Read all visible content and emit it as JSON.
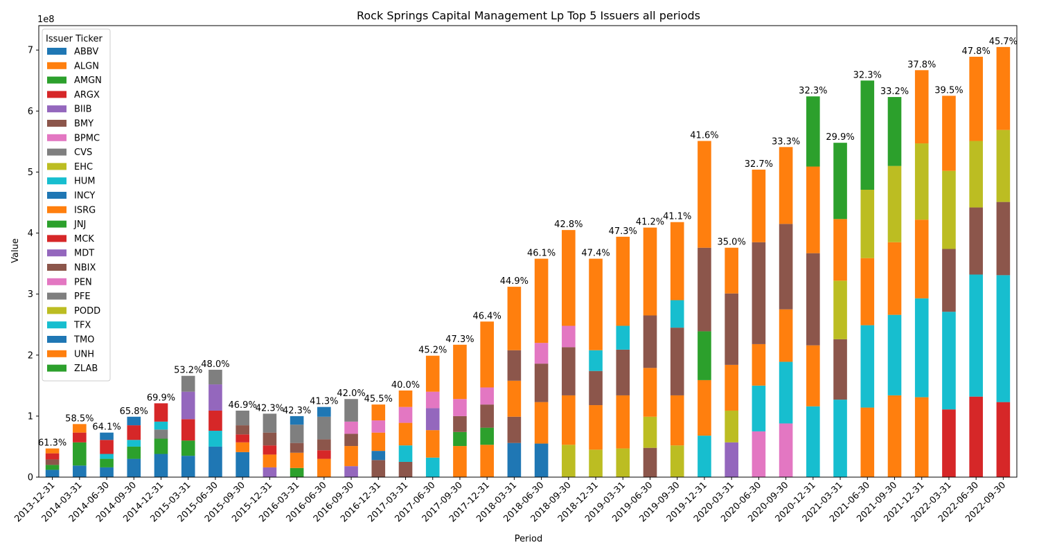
{
  "chart_data": {
    "type": "bar",
    "stacked": true,
    "title": "Rock Springs Capital Management Lp Top 5 Issuers all periods",
    "xlabel": "Period",
    "ylabel": "Value",
    "y_multiplier": "1e8",
    "ylim": [
      0,
      7.4
    ],
    "yticks": [
      0,
      1,
      2,
      3,
      4,
      5,
      6,
      7
    ],
    "legend_title": "Issuer Ticker",
    "legend_position": "top-left",
    "legend": [
      {
        "name": "ABBV",
        "color": "#1f77b4"
      },
      {
        "name": "ALGN",
        "color": "#ff7f0e"
      },
      {
        "name": "AMGN",
        "color": "#2ca02c"
      },
      {
        "name": "ARGX",
        "color": "#d62728"
      },
      {
        "name": "BIIB",
        "color": "#9467bd"
      },
      {
        "name": "BMY",
        "color": "#8c564b"
      },
      {
        "name": "BPMC",
        "color": "#e377c2"
      },
      {
        "name": "CVS",
        "color": "#7f7f7f"
      },
      {
        "name": "EHC",
        "color": "#bcbd22"
      },
      {
        "name": "HUM",
        "color": "#17becf"
      },
      {
        "name": "INCY",
        "color": "#1f77b4"
      },
      {
        "name": "ISRG",
        "color": "#ff7f0e"
      },
      {
        "name": "JNJ",
        "color": "#2ca02c"
      },
      {
        "name": "MCK",
        "color": "#d62728"
      },
      {
        "name": "MDT",
        "color": "#9467bd"
      },
      {
        "name": "NBIX",
        "color": "#8c564b"
      },
      {
        "name": "PEN",
        "color": "#e377c2"
      },
      {
        "name": "PFE",
        "color": "#7f7f7f"
      },
      {
        "name": "PODD",
        "color": "#bcbd22"
      },
      {
        "name": "TFX",
        "color": "#17becf"
      },
      {
        "name": "TMO",
        "color": "#1f77b4"
      },
      {
        "name": "UNH",
        "color": "#ff7f0e"
      },
      {
        "name": "ZLAB",
        "color": "#2ca02c"
      }
    ],
    "periods": [
      {
        "period": "2013-12-31",
        "label": "61.3%",
        "stack": [
          {
            "t": "ABBV",
            "v": 0.12
          },
          {
            "t": "AMGN",
            "v": 0.08
          },
          {
            "t": "BMY",
            "v": 0.09
          },
          {
            "t": "MCK",
            "v": 0.1
          },
          {
            "t": "UNH",
            "v": 0.08
          }
        ]
      },
      {
        "period": "2014-03-31",
        "label": "58.5%",
        "stack": [
          {
            "t": "ABBV",
            "v": 0.19
          },
          {
            "t": "JNJ",
            "v": 0.38
          },
          {
            "t": "MCK",
            "v": 0.16
          },
          {
            "t": "UNH",
            "v": 0.14
          }
        ]
      },
      {
        "period": "2014-06-30",
        "label": "64.1%",
        "stack": [
          {
            "t": "ABBV",
            "v": 0.16
          },
          {
            "t": "AMGN",
            "v": 0.14
          },
          {
            "t": "HUM",
            "v": 0.08
          },
          {
            "t": "MCK",
            "v": 0.23
          },
          {
            "t": "TMO",
            "v": 0.12
          }
        ]
      },
      {
        "period": "2014-09-30",
        "label": "65.8%",
        "stack": [
          {
            "t": "ABBV",
            "v": 0.3
          },
          {
            "t": "AMGN",
            "v": 0.2
          },
          {
            "t": "HUM",
            "v": 0.11
          },
          {
            "t": "MCK",
            "v": 0.24
          },
          {
            "t": "TMO",
            "v": 0.14
          }
        ]
      },
      {
        "period": "2014-12-31",
        "label": "69.9%",
        "stack": [
          {
            "t": "ABBV",
            "v": 0.38
          },
          {
            "t": "AMGN",
            "v": 0.25
          },
          {
            "t": "PFE",
            "v": 0.15
          },
          {
            "t": "HUM",
            "v": 0.13
          },
          {
            "t": "MCK",
            "v": 0.3
          }
        ]
      },
      {
        "period": "2015-03-31",
        "label": "53.2%",
        "stack": [
          {
            "t": "ABBV",
            "v": 0.35
          },
          {
            "t": "AMGN",
            "v": 0.25
          },
          {
            "t": "MCK",
            "v": 0.35
          },
          {
            "t": "MDT",
            "v": 0.45
          },
          {
            "t": "CVS",
            "v": 0.26
          }
        ]
      },
      {
        "period": "2015-06-30",
        "label": "48.0%",
        "stack": [
          {
            "t": "ABBV",
            "v": 0.5
          },
          {
            "t": "HUM",
            "v": 0.26
          },
          {
            "t": "MCK",
            "v": 0.33
          },
          {
            "t": "MDT",
            "v": 0.43
          },
          {
            "t": "CVS",
            "v": 0.24
          }
        ]
      },
      {
        "period": "2015-09-30",
        "label": "46.9%",
        "stack": [
          {
            "t": "ABBV",
            "v": 0.41
          },
          {
            "t": "UNH",
            "v": 0.16
          },
          {
            "t": "MCK",
            "v": 0.13
          },
          {
            "t": "BMY",
            "v": 0.15
          },
          {
            "t": "CVS",
            "v": 0.24
          }
        ]
      },
      {
        "period": "2015-12-31",
        "label": "42.3%",
        "stack": [
          {
            "t": "MDT",
            "v": 0.16
          },
          {
            "t": "UNH",
            "v": 0.21
          },
          {
            "t": "MCK",
            "v": 0.15
          },
          {
            "t": "BMY",
            "v": 0.21
          },
          {
            "t": "CVS",
            "v": 0.31
          }
        ]
      },
      {
        "period": "2016-03-31",
        "label": "42.3%",
        "stack": [
          {
            "t": "JNJ",
            "v": 0.15
          },
          {
            "t": "UNH",
            "v": 0.25
          },
          {
            "t": "BMY",
            "v": 0.16
          },
          {
            "t": "CVS",
            "v": 0.3
          },
          {
            "t": "TMO",
            "v": 0.14
          }
        ]
      },
      {
        "period": "2016-06-30",
        "label": "41.3%",
        "stack": [
          {
            "t": "UNH",
            "v": 0.3
          },
          {
            "t": "MCK",
            "v": 0.14
          },
          {
            "t": "BMY",
            "v": 0.18
          },
          {
            "t": "PFE",
            "v": 0.37
          },
          {
            "t": "TMO",
            "v": 0.16
          }
        ]
      },
      {
        "period": "2016-09-30",
        "label": "42.0%",
        "stack": [
          {
            "t": "MDT",
            "v": 0.18
          },
          {
            "t": "UNH",
            "v": 0.33
          },
          {
            "t": "BMY",
            "v": 0.2
          },
          {
            "t": "PEN",
            "v": 0.2
          },
          {
            "t": "CVS",
            "v": 0.37
          }
        ]
      },
      {
        "period": "2016-12-31",
        "label": "45.5%",
        "stack": [
          {
            "t": "BMY",
            "v": 0.28
          },
          {
            "t": "TMO",
            "v": 0.15
          },
          {
            "t": "UNH",
            "v": 0.3
          },
          {
            "t": "PEN",
            "v": 0.2
          },
          {
            "t": "ISRG",
            "v": 0.26
          }
        ]
      },
      {
        "period": "2017-03-31",
        "label": "40.0%",
        "stack": [
          {
            "t": "BMY",
            "v": 0.25
          },
          {
            "t": "HUM",
            "v": 0.27
          },
          {
            "t": "UNH",
            "v": 0.37
          },
          {
            "t": "PEN",
            "v": 0.26
          },
          {
            "t": "ISRG",
            "v": 0.27
          }
        ]
      },
      {
        "period": "2017-06-30",
        "label": "45.2%",
        "stack": [
          {
            "t": "TFX",
            "v": 0.32
          },
          {
            "t": "UNH",
            "v": 0.45
          },
          {
            "t": "MDT",
            "v": 0.36
          },
          {
            "t": "PEN",
            "v": 0.27
          },
          {
            "t": "ISRG",
            "v": 0.59
          }
        ]
      },
      {
        "period": "2017-09-30",
        "label": "47.3%",
        "stack": [
          {
            "t": "UNH",
            "v": 0.51
          },
          {
            "t": "AMGN",
            "v": 0.23
          },
          {
            "t": "NBIX",
            "v": 0.26
          },
          {
            "t": "PEN",
            "v": 0.28
          },
          {
            "t": "ISRG",
            "v": 0.89
          }
        ]
      },
      {
        "period": "2017-12-31",
        "label": "46.4%",
        "stack": [
          {
            "t": "ALGN",
            "v": 0.53
          },
          {
            "t": "AMGN",
            "v": 0.28
          },
          {
            "t": "NBIX",
            "v": 0.38
          },
          {
            "t": "PEN",
            "v": 0.28
          },
          {
            "t": "ISRG",
            "v": 1.08
          }
        ]
      },
      {
        "period": "2018-03-31",
        "label": "44.9%",
        "stack": [
          {
            "t": "ABBV",
            "v": 0.56
          },
          {
            "t": "NBIX",
            "v": 0.43
          },
          {
            "t": "ISRG",
            "v": 0.59
          },
          {
            "t": "BMY",
            "v": 0.5
          },
          {
            "t": "UNH",
            "v": 1.04
          }
        ]
      },
      {
        "period": "2018-06-30",
        "label": "46.1%",
        "stack": [
          {
            "t": "INCY",
            "v": 0.55
          },
          {
            "t": "UNH",
            "v": 0.68
          },
          {
            "t": "NBIX",
            "v": 0.63
          },
          {
            "t": "PEN",
            "v": 0.34
          },
          {
            "t": "ISRG",
            "v": 1.38
          }
        ]
      },
      {
        "period": "2018-09-30",
        "label": "42.8%",
        "stack": [
          {
            "t": "PODD",
            "v": 0.53
          },
          {
            "t": "UNH",
            "v": 0.81
          },
          {
            "t": "NBIX",
            "v": 0.79
          },
          {
            "t": "PEN",
            "v": 0.35
          },
          {
            "t": "ISRG",
            "v": 1.57
          }
        ]
      },
      {
        "period": "2018-12-31",
        "label": "47.4%",
        "stack": [
          {
            "t": "PODD",
            "v": 0.45
          },
          {
            "t": "UNH",
            "v": 0.73
          },
          {
            "t": "NBIX",
            "v": 0.56
          },
          {
            "t": "TFX",
            "v": 0.34
          },
          {
            "t": "ISRG",
            "v": 1.5
          }
        ]
      },
      {
        "period": "2019-03-31",
        "label": "47.3%",
        "stack": [
          {
            "t": "PODD",
            "v": 0.47
          },
          {
            "t": "UNH",
            "v": 0.87
          },
          {
            "t": "NBIX",
            "v": 0.75
          },
          {
            "t": "TFX",
            "v": 0.39
          },
          {
            "t": "ISRG",
            "v": 1.46
          }
        ]
      },
      {
        "period": "2019-06-30",
        "label": "41.2%",
        "stack": [
          {
            "t": "BMY",
            "v": 0.48
          },
          {
            "t": "PODD",
            "v": 0.51
          },
          {
            "t": "UNH",
            "v": 0.8
          },
          {
            "t": "NBIX",
            "v": 0.86
          },
          {
            "t": "ISRG",
            "v": 1.44
          }
        ]
      },
      {
        "period": "2019-09-30",
        "label": "41.1%",
        "stack": [
          {
            "t": "PODD",
            "v": 0.52
          },
          {
            "t": "UNH",
            "v": 0.82
          },
          {
            "t": "NBIX",
            "v": 1.11
          },
          {
            "t": "TFX",
            "v": 0.45
          },
          {
            "t": "ISRG",
            "v": 1.28
          }
        ]
      },
      {
        "period": "2019-12-31",
        "label": "41.6%",
        "stack": [
          {
            "t": "TFX",
            "v": 0.68
          },
          {
            "t": "UNH",
            "v": 0.91
          },
          {
            "t": "JNJ",
            "v": 0.8
          },
          {
            "t": "NBIX",
            "v": 1.37
          },
          {
            "t": "ISRG",
            "v": 1.75
          }
        ]
      },
      {
        "period": "2020-03-31",
        "label": "35.0%",
        "stack": [
          {
            "t": "MDT",
            "v": 0.57
          },
          {
            "t": "PODD",
            "v": 0.52
          },
          {
            "t": "UNH",
            "v": 0.75
          },
          {
            "t": "NBIX",
            "v": 1.17
          },
          {
            "t": "ISRG",
            "v": 0.75
          }
        ]
      },
      {
        "period": "2020-06-30",
        "label": "32.7%",
        "stack": [
          {
            "t": "PEN",
            "v": 0.75
          },
          {
            "t": "TFX",
            "v": 0.75
          },
          {
            "t": "UNH",
            "v": 0.68
          },
          {
            "t": "NBIX",
            "v": 1.67
          },
          {
            "t": "ISRG",
            "v": 1.19
          }
        ]
      },
      {
        "period": "2020-09-30",
        "label": "33.3%",
        "stack": [
          {
            "t": "PEN",
            "v": 0.88
          },
          {
            "t": "TFX",
            "v": 1.01
          },
          {
            "t": "UNH",
            "v": 0.86
          },
          {
            "t": "NBIX",
            "v": 1.4
          },
          {
            "t": "ISRG",
            "v": 1.26
          }
        ]
      },
      {
        "period": "2020-12-31",
        "label": "32.3%",
        "stack": [
          {
            "t": "TFX",
            "v": 1.16
          },
          {
            "t": "UNH",
            "v": 1.0
          },
          {
            "t": "NBIX",
            "v": 1.51
          },
          {
            "t": "ISRG",
            "v": 1.42
          },
          {
            "t": "ZLAB",
            "v": 1.15
          }
        ]
      },
      {
        "period": "2021-03-31",
        "label": "29.9%",
        "stack": [
          {
            "t": "TFX",
            "v": 1.27
          },
          {
            "t": "NBIX",
            "v": 0.99
          },
          {
            "t": "PODD",
            "v": 0.96
          },
          {
            "t": "ISRG",
            "v": 1.01
          },
          {
            "t": "ZLAB",
            "v": 1.25
          }
        ]
      },
      {
        "period": "2021-06-30",
        "label": "32.3%",
        "stack": [
          {
            "t": "UNH",
            "v": 1.14
          },
          {
            "t": "TFX",
            "v": 1.35
          },
          {
            "t": "ISRG",
            "v": 1.1
          },
          {
            "t": "PODD",
            "v": 1.12
          },
          {
            "t": "ZLAB",
            "v": 1.79
          }
        ]
      },
      {
        "period": "2021-09-30",
        "label": "33.2%",
        "stack": [
          {
            "t": "UNH",
            "v": 1.34
          },
          {
            "t": "TFX",
            "v": 1.32
          },
          {
            "t": "ISRG",
            "v": 1.19
          },
          {
            "t": "PODD",
            "v": 1.25
          },
          {
            "t": "ZLAB",
            "v": 1.13
          }
        ]
      },
      {
        "period": "2021-12-31",
        "label": "37.8%",
        "stack": [
          {
            "t": "UNH",
            "v": 1.31
          },
          {
            "t": "TFX",
            "v": 1.62
          },
          {
            "t": "ISRG",
            "v": 1.29
          },
          {
            "t": "PODD",
            "v": 1.25
          },
          {
            "t": "ALGN",
            "v": 1.2
          }
        ]
      },
      {
        "period": "2022-03-31",
        "label": "39.5%",
        "stack": [
          {
            "t": "ARGX",
            "v": 1.11
          },
          {
            "t": "TFX",
            "v": 1.6
          },
          {
            "t": "NBIX",
            "v": 1.03
          },
          {
            "t": "PODD",
            "v": 1.28
          },
          {
            "t": "ISRG",
            "v": 1.23
          }
        ]
      },
      {
        "period": "2022-06-30",
        "label": "47.8%",
        "stack": [
          {
            "t": "ARGX",
            "v": 1.32
          },
          {
            "t": "TFX",
            "v": 2.0
          },
          {
            "t": "NBIX",
            "v": 1.1
          },
          {
            "t": "PODD",
            "v": 1.09
          },
          {
            "t": "ISRG",
            "v": 1.38
          }
        ]
      },
      {
        "period": "2022-09-30",
        "label": "45.7%",
        "stack": [
          {
            "t": "ARGX",
            "v": 1.23
          },
          {
            "t": "TFX",
            "v": 2.08
          },
          {
            "t": "NBIX",
            "v": 1.2
          },
          {
            "t": "PODD",
            "v": 1.18
          },
          {
            "t": "ISRG",
            "v": 1.36
          }
        ]
      }
    ]
  }
}
